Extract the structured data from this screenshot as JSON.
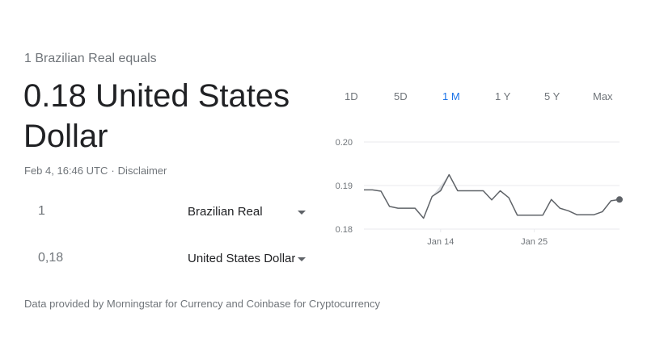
{
  "header": {
    "intro": "1 Brazilian Real equals",
    "value": "0.18 United States Dollar",
    "timestamp": "Feb 4, 16:46 UTC",
    "separator": "·",
    "disclaimer": "Disclaimer"
  },
  "converter": {
    "from_amount": "1",
    "from_currency": "Brazilian Real",
    "to_amount": "0,18",
    "to_currency": "United States Dollar"
  },
  "tabs": [
    {
      "label": "1D",
      "active": false
    },
    {
      "label": "5D",
      "active": false
    },
    {
      "label": "1 M",
      "active": true
    },
    {
      "label": "1 Y",
      "active": false
    },
    {
      "label": "5 Y",
      "active": false
    },
    {
      "label": "Max",
      "active": false
    }
  ],
  "footer": {
    "text": "Data provided by Morningstar for Currency and Coinbase for Cryptocurrency"
  },
  "colors": {
    "line": "#5f6368",
    "fill": "#dadce0",
    "grid": "#e8eaed",
    "active_tab": "#1a73e8"
  },
  "chart_data": {
    "type": "line",
    "xlabel": "",
    "ylabel": "",
    "ylim": [
      0.18,
      0.2
    ],
    "yticks": [
      "0.20",
      "0.19",
      "0.18"
    ],
    "ytick_values": [
      0.2,
      0.19,
      0.18
    ],
    "xticks": [
      {
        "label": "Jan 14",
        "x": "Jan 14"
      },
      {
        "label": "Jan 25",
        "x": "Jan 25"
      }
    ],
    "x": [
      "Jan 5",
      "Jan 6",
      "Jan 7",
      "Jan 8",
      "Jan 9",
      "Jan 10",
      "Jan 11",
      "Jan 12",
      "Jan 13",
      "Jan 14",
      "Jan 15",
      "Jan 16",
      "Jan 17",
      "Jan 18",
      "Jan 19",
      "Jan 20",
      "Jan 21",
      "Jan 22",
      "Jan 23",
      "Jan 24",
      "Jan 25",
      "Jan 26",
      "Jan 27",
      "Jan 28",
      "Jan 29",
      "Jan 30",
      "Jan 31",
      "Feb 1",
      "Feb 2",
      "Feb 3",
      "Feb 4"
    ],
    "values": [
      0.189,
      0.189,
      0.1887,
      0.1852,
      0.1848,
      0.1848,
      0.1848,
      0.1825,
      0.1875,
      0.1888,
      0.1925,
      0.1888,
      0.1888,
      0.1888,
      0.1888,
      0.1867,
      0.1888,
      0.1872,
      0.1832,
      0.1832,
      0.1832,
      0.1832,
      0.1868,
      0.1848,
      0.1842,
      0.1833,
      0.1833,
      0.1833,
      0.184,
      0.1865,
      0.1868
    ],
    "shaded_range": [
      "Jan 13",
      "Jan 15"
    ],
    "grid": true
  }
}
